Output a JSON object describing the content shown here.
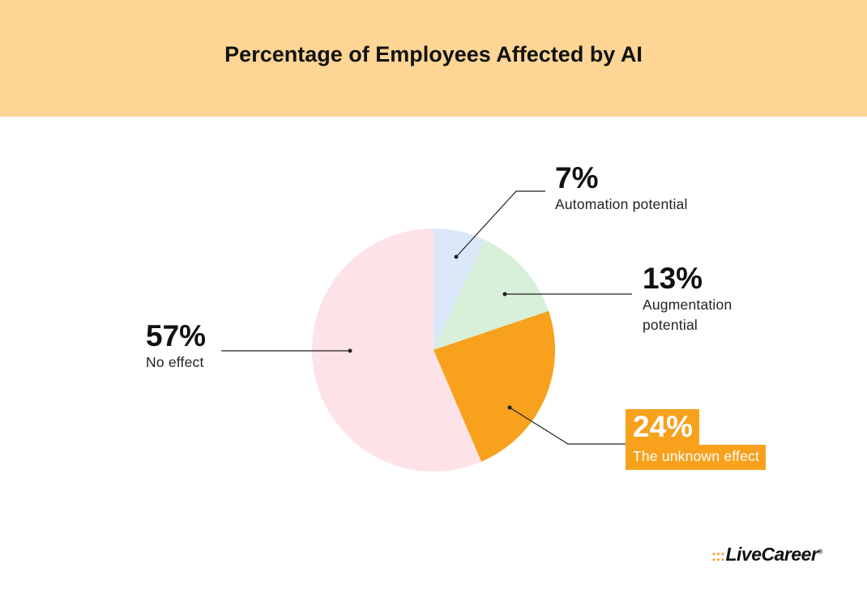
{
  "header": {
    "title": "Percentage of Employees Affected by AI"
  },
  "chart_data": {
    "type": "pie",
    "title": "Percentage of Employees Affected by AI",
    "slices": [
      {
        "label": "Automation potential",
        "value": 7,
        "display": "7%",
        "color": "#dae8fa"
      },
      {
        "label": "Augmentation potential",
        "value": 13,
        "display": "13%",
        "color": "#d8efda"
      },
      {
        "label": "The unknown effect",
        "value": 24,
        "display": "24%",
        "color": "#f7a11d"
      },
      {
        "label": "No effect",
        "value": 57,
        "display": "57%",
        "color": "#fde3e8"
      }
    ]
  },
  "labels": {
    "automation": {
      "pct": "7%",
      "desc": "Automation potential"
    },
    "augmentation": {
      "pct": "13%",
      "desc_line1": "Augmentation",
      "desc_line2": "potential"
    },
    "unknown": {
      "pct": "24%",
      "desc": "The unknown effect"
    },
    "no_effect": {
      "pct": "57%",
      "desc": "No effect"
    }
  },
  "logo": {
    "mark": ":::",
    "name": "LiveCareer",
    "reg": "®"
  },
  "colors": {
    "header_bg": "#fed594",
    "accent": "#f7a11d"
  }
}
